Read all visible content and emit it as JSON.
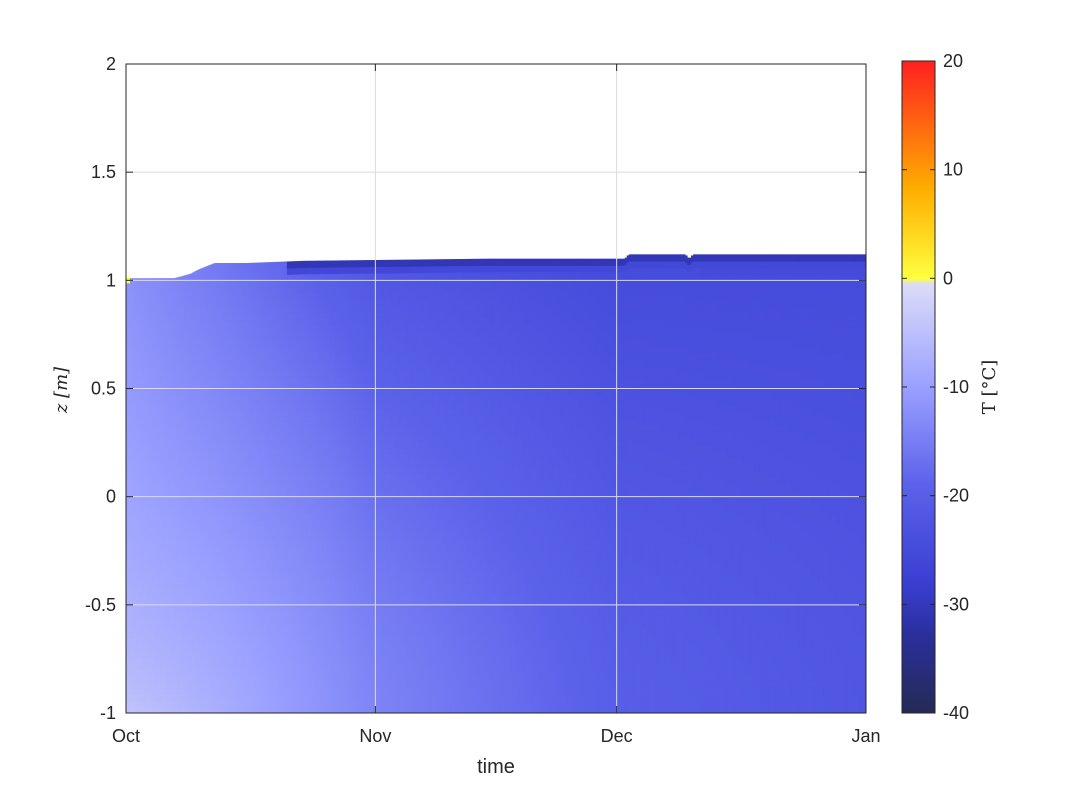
{
  "chart_data": {
    "type": "heatmap",
    "xlabel": "time",
    "ylabel": "z [m]",
    "x_ticks": [
      "Oct",
      "Nov",
      "Dec",
      "Jan"
    ],
    "x_tick_days": [
      0,
      31,
      61,
      92
    ],
    "y_ticks": [
      "-1",
      "-0.5",
      "0",
      "0.5",
      "1",
      "1.5",
      "2"
    ],
    "y_tick_values": [
      -1,
      -0.5,
      0,
      0.5,
      1,
      1.5,
      2
    ],
    "ylim": [
      -1,
      2
    ],
    "grid": true,
    "colorbar": {
      "label": "T [°C]",
      "ticks": [
        "-40",
        "-30",
        "-20",
        "-10",
        "0",
        "10",
        "20"
      ],
      "tick_values": [
        -40,
        -30,
        -20,
        -10,
        0,
        10,
        20
      ],
      "range": [
        -40,
        20
      ]
    },
    "surface_height": [
      [
        0,
        1.01
      ],
      [
        6,
        1.01
      ],
      [
        7,
        1.02
      ],
      [
        8,
        1.03
      ],
      [
        9,
        1.05
      ],
      [
        11,
        1.08
      ],
      [
        15,
        1.08
      ],
      [
        22,
        1.09
      ],
      [
        45,
        1.1
      ],
      [
        62,
        1.1
      ],
      [
        62.5,
        1.12
      ],
      [
        69.5,
        1.12
      ],
      [
        70,
        1.1
      ],
      [
        70.5,
        1.12
      ],
      [
        92,
        1.12
      ]
    ],
    "temperature_summary": {
      "oct_bottom": -4,
      "oct_surface": -12,
      "nov_bottom": -14,
      "nov_surface": -22,
      "dec_bottom": -20,
      "dec_surface": -25,
      "jan_bottom": -22,
      "jan_surface": -25,
      "surface_crust_min": -33,
      "surface_point_oct": 1
    },
    "colors": {
      "background": "#ffffff",
      "axis": "#262626",
      "grid": "#dcdcdc"
    }
  }
}
